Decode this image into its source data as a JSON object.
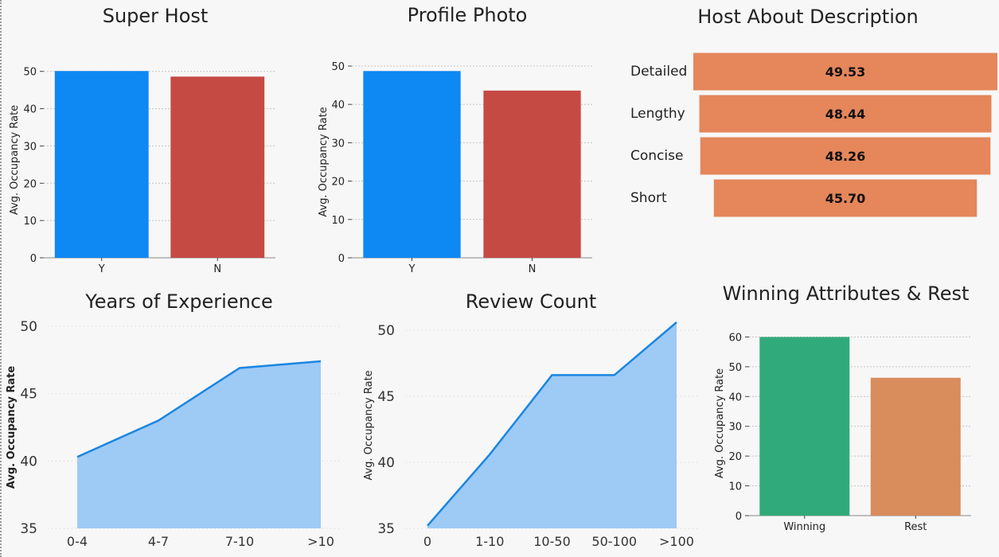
{
  "chart_data": [
    {
      "id": "super-host",
      "type": "bar",
      "title": "Super Host",
      "ylabel": "Avg. Occupancy Rate",
      "categories": [
        "Y",
        "N"
      ],
      "values": [
        50.1,
        48.6
      ],
      "colors": [
        "#0e88f3",
        "#c64a44"
      ],
      "ylim": [
        0,
        52.5
      ],
      "yticks": [
        0,
        10,
        20,
        30,
        40,
        50
      ],
      "grid": true
    },
    {
      "id": "profile-photo",
      "type": "bar",
      "title": "Profile Photo",
      "ylabel": "Avg. Occupancy Rate",
      "categories": [
        "Y",
        "N"
      ],
      "values": [
        48.7,
        43.6
      ],
      "colors": [
        "#0e88f3",
        "#c64a44"
      ],
      "ylim": [
        0,
        50
      ],
      "yticks": [
        0,
        10,
        20,
        30,
        40,
        50
      ],
      "grid": true
    },
    {
      "id": "host-about",
      "type": "bar",
      "orientation": "horizontal-funnel",
      "title": "Host About Description",
      "categories": [
        "Detailed",
        "Lengthy",
        "Concise",
        "Short"
      ],
      "values": [
        49.53,
        48.44,
        48.26,
        45.7
      ],
      "value_labels": [
        "49.53",
        "48.44",
        "48.26",
        "45.70"
      ],
      "color": "#e5865b"
    },
    {
      "id": "years-experience",
      "type": "area",
      "title": "Years of Experience",
      "ylabel": "Avg. Occupancy Rate",
      "categories": [
        "0-4",
        "4-7",
        "7-10",
        ">10"
      ],
      "values": [
        40.3,
        43.0,
        46.9,
        47.4
      ],
      "ylim": [
        35,
        50
      ],
      "yticks": [
        35,
        40,
        45,
        50
      ],
      "line_color": "#1a86e0",
      "fill_color": "#9ecaf6",
      "grid": true
    },
    {
      "id": "review-count",
      "type": "area",
      "title": "Review Count",
      "ylabel": "Avg. Occupancy Rate",
      "categories": [
        "0",
        "1-10",
        "10-50",
        "50-100",
        ">100"
      ],
      "values": [
        35.2,
        40.6,
        46.6,
        46.6,
        50.6
      ],
      "ylim": [
        35,
        50.6
      ],
      "yticks": [
        35,
        40,
        45,
        50
      ],
      "line_color": "#1a86e0",
      "fill_color": "#9ecaf6",
      "grid": true
    },
    {
      "id": "winning-rest",
      "type": "bar",
      "title": "Winning Attributes & Rest",
      "ylabel": "Avg. Occupancy Rate",
      "categories": [
        "Winning",
        "Rest"
      ],
      "values": [
        60.0,
        46.3
      ],
      "colors": [
        "#31aa7b",
        "#d98c5c"
      ],
      "ylim": [
        0,
        62
      ],
      "yticks": [
        0,
        10,
        20,
        30,
        40,
        50,
        60
      ],
      "grid": true
    }
  ]
}
